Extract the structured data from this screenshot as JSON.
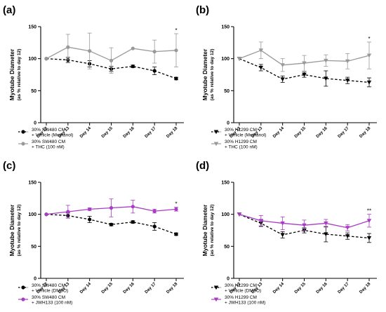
{
  "chart_data": [
    {
      "panel_label": "(a)",
      "type": "line",
      "ylabel": "Myotube Diameter",
      "ylabel_sub": "(as % relative to day 12)",
      "ylim": [
        0,
        150
      ],
      "yticks": [
        "0",
        "50",
        "100",
        "150"
      ],
      "categories": [
        "Day 12",
        "Day 13",
        "Day 14",
        "Day 15",
        "Day 16",
        "Day 17",
        "Day 18"
      ],
      "legend_position": "bottom-left",
      "series": [
        {
          "legend_line1": "30% SW480 CM",
          "legend_line2": "+ Vehicle (Methanol)",
          "color": "#000000",
          "marker": "circle",
          "dashed": true,
          "values": [
            100,
            98,
            92,
            84,
            88,
            81,
            69
          ],
          "errors": [
            0,
            4,
            5,
            4,
            2,
            6,
            2
          ]
        },
        {
          "legend_line1": "30% SW480 CM",
          "legend_line2": "+ THC (100 nM)",
          "color": "#999999",
          "marker": "circle",
          "dashed": false,
          "values": [
            100,
            118,
            112,
            97,
            116,
            111,
            113
          ],
          "errors": [
            0,
            20,
            28,
            20,
            0,
            18,
            26
          ]
        }
      ],
      "annotations": [
        {
          "x_index": 6,
          "text": "*"
        }
      ]
    },
    {
      "panel_label": "(b)",
      "type": "line",
      "ylabel": "Myotube Diameter",
      "ylabel_sub": "(as % relative to day 12)",
      "ylim": [
        0,
        150
      ],
      "yticks": [
        "0",
        "50",
        "100",
        "150"
      ],
      "categories": [
        "Day 12",
        "Day 13",
        "Day 14",
        "Day 15",
        "Day 16",
        "Day 17",
        "Day 18"
      ],
      "legend_position": "bottom-left",
      "series": [
        {
          "legend_line1": "30% H1299 CM",
          "legend_line2": "+ Vehicle (Methanol)",
          "color": "#000000",
          "marker": "triangle-down",
          "dashed": true,
          "values": [
            100,
            86,
            68,
            75,
            69,
            66,
            63
          ],
          "errors": [
            0,
            5,
            5,
            4,
            12,
            5,
            7
          ]
        },
        {
          "legend_line1": "30% H1299 CM",
          "legend_line2": "+ THC (100 nM)",
          "color": "#999999",
          "marker": "triangle-down",
          "dashed": false,
          "values": [
            100,
            113,
            90,
            93,
            97,
            96,
            105
          ],
          "errors": [
            0,
            13,
            10,
            12,
            9,
            12,
            21
          ]
        }
      ],
      "annotations": [
        {
          "x_index": 6,
          "text": "*"
        }
      ]
    },
    {
      "panel_label": "(c)",
      "type": "line",
      "ylabel": "Myotube Diameter",
      "ylabel_sub": "(as % relative to day 12)",
      "ylim": [
        0,
        150
      ],
      "yticks": [
        "0",
        "50",
        "100",
        "150"
      ],
      "categories": [
        "Day 12",
        "Day 13",
        "Day 14",
        "Day 15",
        "Day 16",
        "Day 17",
        "Day 18"
      ],
      "legend_position": "bottom-left",
      "series": [
        {
          "legend_line1": "30% SW480 CM",
          "legend_line2": "+ Vehicle (DMSO)",
          "color": "#000000",
          "marker": "circle",
          "dashed": true,
          "values": [
            100,
            98,
            92,
            84,
            88,
            81,
            69
          ],
          "errors": [
            0,
            4,
            5,
            2,
            2,
            6,
            2
          ]
        },
        {
          "legend_line1": "30% SW480 CM",
          "legend_line2": "+ JWH133 (100 nM)",
          "color": "#a83cc4",
          "marker": "circle",
          "dashed": false,
          "values": [
            100,
            104,
            108,
            110,
            112,
            105,
            108
          ],
          "errors": [
            0,
            10,
            2,
            14,
            10,
            3,
            3
          ]
        }
      ],
      "annotations": [
        {
          "x_index": 6,
          "text": "*"
        }
      ]
    },
    {
      "panel_label": "(d)",
      "type": "line",
      "ylabel": "Myotube Diameter",
      "ylabel_sub": "(as % relative to day 12)",
      "ylim": [
        0,
        150
      ],
      "yticks": [
        "0",
        "50",
        "100",
        "150"
      ],
      "categories": [
        "Day 12",
        "Day 13",
        "Day 14",
        "Day 15",
        "Day 16",
        "Day 17",
        "Day 18"
      ],
      "legend_position": "bottom-left",
      "series": [
        {
          "legend_line1": "30% H1299 CM",
          "legend_line2": "+ Vehicle (DMSO)",
          "color": "#000000",
          "marker": "triangle-down",
          "dashed": true,
          "values": [
            100,
            86,
            68,
            75,
            69,
            66,
            63
          ],
          "errors": [
            0,
            5,
            5,
            4,
            12,
            5,
            7
          ]
        },
        {
          "legend_line1": "30% H1299 CM",
          "legend_line2": "+ JWH133 (100 nM)",
          "color": "#a83cc4",
          "marker": "triangle-down",
          "dashed": false,
          "values": [
            100,
            90,
            86,
            83,
            86,
            79,
            90
          ],
          "errors": [
            0,
            8,
            10,
            8,
            6,
            5,
            10
          ]
        }
      ],
      "annotations": [
        {
          "x_index": 6,
          "text": "**"
        }
      ]
    }
  ]
}
